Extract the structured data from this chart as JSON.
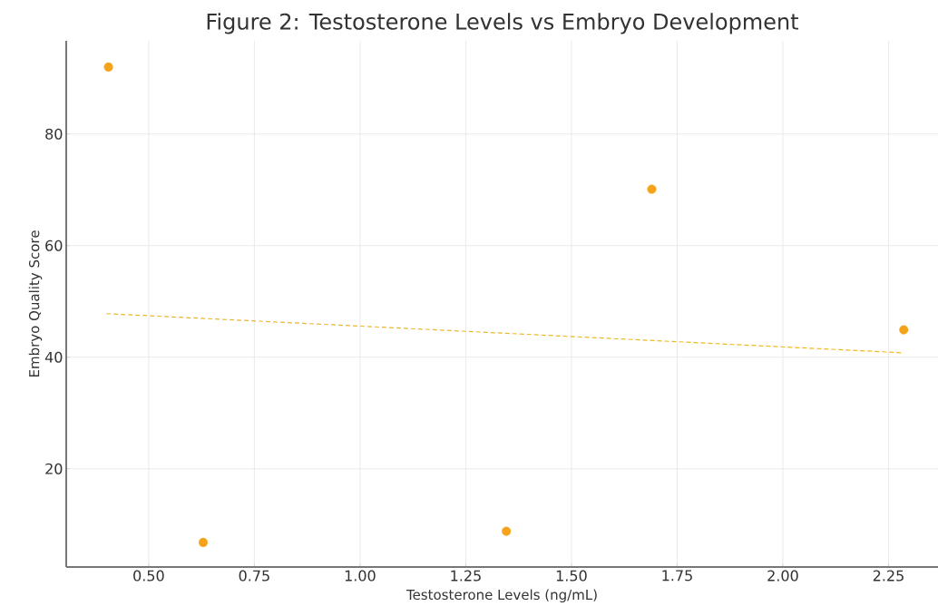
{
  "chart_data": {
    "type": "scatter",
    "title": "Figure 2: Testosterone Levels vs Embryo Development",
    "xlabel": "Testosterone Levels (ng/mL)",
    "ylabel": "Embryo Quality Score",
    "xlim": [
      0.305,
      2.367
    ],
    "ylim": [
      2.4,
      96.7
    ],
    "xticks": [
      {
        "value": 0.5,
        "label": "0.50"
      },
      {
        "value": 0.75,
        "label": "0.75"
      },
      {
        "value": 1.0,
        "label": "1.00"
      },
      {
        "value": 1.25,
        "label": "1.25"
      },
      {
        "value": 1.5,
        "label": "1.50"
      },
      {
        "value": 1.75,
        "label": "1.75"
      },
      {
        "value": 2.0,
        "label": "2.00"
      },
      {
        "value": 2.25,
        "label": "2.25"
      }
    ],
    "yticks": [
      20,
      40,
      60,
      80
    ],
    "grid": true,
    "series": [
      {
        "marker": "circle",
        "color": "#f5a31a",
        "x": [
          0.405,
          0.629,
          1.346,
          1.69,
          2.286
        ],
        "values": [
          92,
          6.8,
          8.8,
          70.1,
          44.9
        ]
      },
      {
        "type": "line",
        "marker": "none",
        "line_style": "dashed",
        "color": "#f0b820",
        "x": [
          0.4,
          2.28
        ],
        "values": [
          47.8,
          40.8
        ]
      }
    ]
  }
}
